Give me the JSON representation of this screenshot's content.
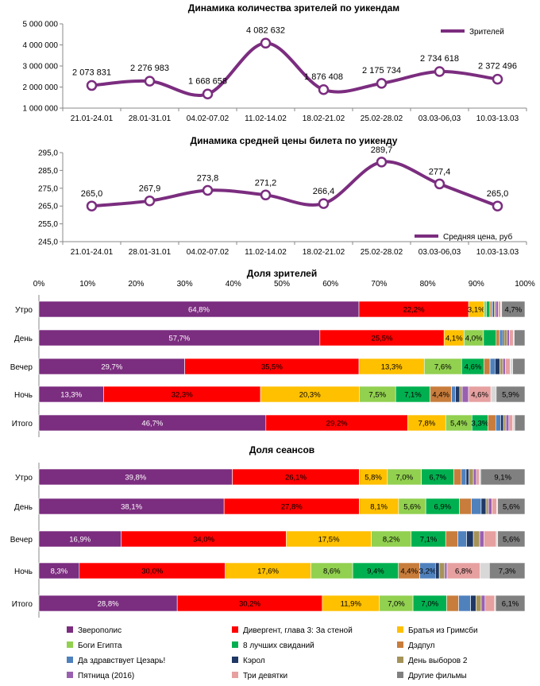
{
  "chart_data": [
    {
      "type": "line",
      "title": "Динамика количества зрителей по уикендам",
      "categories": [
        "21.01-24.01",
        "28.01-31.01",
        "04.02-07.02",
        "11.02-14.02",
        "18.02-21.02",
        "25.02-28.02",
        "03.03-06,03",
        "10.03-13.03"
      ],
      "series": [
        {
          "name": "Зрителей",
          "values": [
            2073831,
            2276983,
            1668658,
            4082632,
            1876408,
            2175734,
            2734618,
            2372496
          ],
          "color": "#7b2d7f"
        }
      ],
      "value_labels": [
        "2 073 831",
        "2 276 983",
        "1 668 658",
        "4 082 632",
        "1 876 408",
        "2 175 734",
        "2 734 618",
        "2 372 496"
      ],
      "ylim": [
        1000000,
        5000000
      ],
      "yticks": [
        1000000,
        2000000,
        3000000,
        4000000,
        5000000
      ],
      "ytick_labels": [
        "1 000 000",
        "2 000 000",
        "3 000 000",
        "4 000 000",
        "5 000 000"
      ],
      "legend": "top-right"
    },
    {
      "type": "line",
      "title": "Динамика средней цены билета по уикенду",
      "categories": [
        "21.01-24.01",
        "28.01-31.01",
        "04.02-07.02",
        "11.02-14.02",
        "18.02-21.02",
        "25.02-28.02",
        "03.03-06,03",
        "10.03-13.03"
      ],
      "series": [
        {
          "name": "Средняя цена, руб",
          "values": [
            265.0,
            267.9,
            273.8,
            271.2,
            266.4,
            289.7,
            277.4,
            265.0
          ],
          "color": "#7b2d7f"
        }
      ],
      "value_labels": [
        "265,0",
        "267,9",
        "273,8",
        "271,2",
        "266,4",
        "289,7",
        "277,4",
        "265,0"
      ],
      "ylim": [
        245,
        295
      ],
      "yticks": [
        245,
        255,
        265,
        275,
        285,
        295
      ],
      "ytick_labels": [
        "245,0",
        "255,0",
        "265,0",
        "275,0",
        "285,0",
        "295,0"
      ],
      "legend": "bottom-right"
    },
    {
      "type": "bar",
      "stacked": "percent",
      "orientation": "horizontal",
      "title": "Доля зрителей",
      "xticks": [
        0,
        10,
        20,
        30,
        40,
        50,
        60,
        70,
        80,
        90,
        100
      ],
      "xtick_labels": [
        "0%",
        "10%",
        "20%",
        "30%",
        "40%",
        "50%",
        "60%",
        "70%",
        "80%",
        "90%",
        "100%"
      ],
      "categories": [
        "Утро",
        "День",
        "Вечер",
        "Ночь",
        "Итого"
      ],
      "rows": [
        {
          "values": [
            64.8,
            22.2,
            3.1,
            0.5,
            0.7,
            0.3,
            0.3,
            0.3,
            0.3,
            0.5,
            0.5,
            0.2,
            4.7
          ],
          "labels": [
            "64,8%",
            "22,2%",
            "3,1%",
            "",
            "",
            "",
            "",
            "",
            "",
            "",
            "",
            "",
            "4,7%"
          ]
        },
        {
          "values": [
            57.7,
            25.5,
            4.1,
            4.0,
            2.6,
            0.7,
            0.6,
            0.3,
            0.6,
            0.5,
            0.8,
            0.2,
            2.2
          ],
          "labels": [
            "57,7%",
            "25,5%",
            "4,1%",
            "4,0%",
            "",
            "",
            "",
            "",
            "",
            "",
            "",
            "",
            ""
          ]
        },
        {
          "values": [
            29.7,
            35.5,
            13.3,
            7.6,
            4.6,
            1.2,
            1.0,
            1.0,
            0.6,
            0.5,
            1.0,
            0.5,
            2.5
          ],
          "labels": [
            "29,7%",
            "35,5%",
            "13,3%",
            "7,6%",
            "4,6%",
            "",
            "",
            "",
            "",
            "",
            "",
            "",
            ""
          ]
        },
        {
          "values": [
            13.3,
            32.3,
            20.3,
            7.5,
            7.1,
            4.4,
            0.8,
            0.9,
            0.5,
            1.3,
            4.6,
            1.1,
            5.9
          ],
          "labels": [
            "13,3%",
            "32,3%",
            "20,3%",
            "7,5%",
            "7,1%",
            "4,4%",
            "",
            "",
            "",
            "",
            "4,6%",
            "",
            "5,9%"
          ]
        },
        {
          "values": [
            46.7,
            29.2,
            7.8,
            5.4,
            3.3,
            1.6,
            1.0,
            0.6,
            0.5,
            0.6,
            0.8,
            0.4,
            2.1
          ],
          "labels": [
            "46,7%",
            "29,2%",
            "7,8%",
            "5,4%",
            "3,3%",
            "",
            "",
            "",
            "",
            "",
            "",
            "",
            ""
          ]
        }
      ]
    },
    {
      "type": "bar",
      "stacked": "percent",
      "orientation": "horizontal",
      "title": "Доля сеансов",
      "categories": [
        "Утро",
        "День",
        "Вечер",
        "Ночь",
        "Итого"
      ],
      "rows": [
        {
          "values": [
            39.8,
            26.1,
            5.8,
            7.0,
            6.7,
            1.5,
            1.0,
            0.6,
            0.9,
            0.6,
            0.6,
            0.3,
            9.1
          ],
          "labels": [
            "39,8%",
            "26,1%",
            "5,8%",
            "7,0%",
            "6,7%",
            "",
            "",
            "",
            "",
            "",
            "",
            "",
            "9,1%"
          ]
        },
        {
          "values": [
            38.1,
            27.8,
            8.1,
            5.6,
            6.9,
            2.5,
            2.0,
            1.0,
            0.5,
            0.7,
            1.0,
            0.2,
            5.6
          ],
          "labels": [
            "38,1%",
            "27,8%",
            "8,1%",
            "5,6%",
            "6,9%",
            "",
            "",
            "",
            "",
            "",
            "",
            "",
            "5,6%"
          ]
        },
        {
          "values": [
            16.9,
            34.0,
            17.5,
            8.2,
            7.1,
            2.5,
            1.8,
            1.4,
            1.3,
            0.9,
            2.5,
            0.3,
            5.6
          ],
          "labels": [
            "16,9%",
            "34,0%",
            "17,5%",
            "8,2%",
            "7,1%",
            "",
            "",
            "",
            "",
            "",
            "",
            "",
            "5,6%"
          ]
        },
        {
          "values": [
            8.3,
            30.0,
            17.6,
            8.6,
            9.4,
            4.4,
            3.2,
            0.8,
            1.1,
            0.5,
            6.8,
            1.9,
            7.3
          ],
          "labels": [
            "8,3%",
            "30,0%",
            "17,6%",
            "8,6%",
            "9,4%",
            "4,4%",
            "3,2%",
            "",
            "",
            "",
            "6,8%",
            "",
            "7,3%"
          ]
        },
        {
          "values": [
            28.8,
            30.2,
            11.9,
            7.0,
            7.0,
            2.5,
            2.5,
            1.1,
            1.1,
            0.8,
            2.0,
            0.2,
            6.1
          ],
          "labels": [
            "28,8%",
            "30,2%",
            "11,9%",
            "7,0%",
            "7,0%",
            "",
            "",
            "",
            "",
            "",
            "",
            "",
            "6,1%"
          ]
        }
      ]
    }
  ],
  "legend": {
    "items": [
      {
        "name": "Зверополис",
        "color": "#7b2d7f"
      },
      {
        "name": "Дивергент, глава 3: За стеной",
        "color": "#ff0000"
      },
      {
        "name": "Братья из Гримсби",
        "color": "#ffc000"
      },
      {
        "name": "Боги Египта",
        "color": "#92d050"
      },
      {
        "name": "8 лучших свиданий",
        "color": "#00b050"
      },
      {
        "name": "Дэдпул",
        "color": "#c87d3c"
      },
      {
        "name": "Да здравствует Цезарь!",
        "color": "#4f81bd"
      },
      {
        "name": "Кэрол",
        "color": "#1f3864"
      },
      {
        "name": "День выборов 2",
        "color": "#a5935a"
      },
      {
        "name": "Пятница (2016)",
        "color": "#9960b0"
      },
      {
        "name": "Три девятки",
        "color": "#e6a0a0"
      },
      {
        "name": "Другие фильмы",
        "color": "#808080"
      }
    ],
    "segment_colors": [
      "#7b2d7f",
      "#ff0000",
      "#ffc000",
      "#92d050",
      "#00b050",
      "#c87d3c",
      "#4f81bd",
      "#1f3864",
      "#a5935a",
      "#9960b0",
      "#e6a0a0",
      "#d8d8d8",
      "#808080"
    ]
  }
}
